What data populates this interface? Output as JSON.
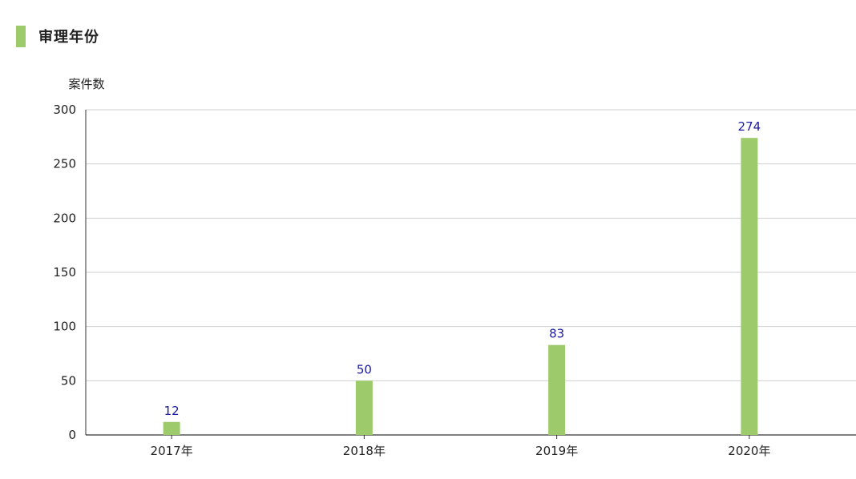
{
  "section": {
    "title": "审理年份",
    "marker_color": "#9dcb6b"
  },
  "chart_data": {
    "type": "bar",
    "title": "",
    "ylabel": "案件数",
    "xlabel": "",
    "categories": [
      "2017年",
      "2018年",
      "2019年",
      "2020年"
    ],
    "values": [
      12,
      50,
      83,
      274
    ],
    "ylim": [
      0,
      300
    ],
    "yticks": [
      0,
      50,
      100,
      150,
      200,
      250,
      300
    ],
    "grid": true,
    "bar_color": "#9dcb6b",
    "label_color": "#1a1aa6",
    "grid_color": "#cfcfcf",
    "axis_color": "#333333"
  }
}
